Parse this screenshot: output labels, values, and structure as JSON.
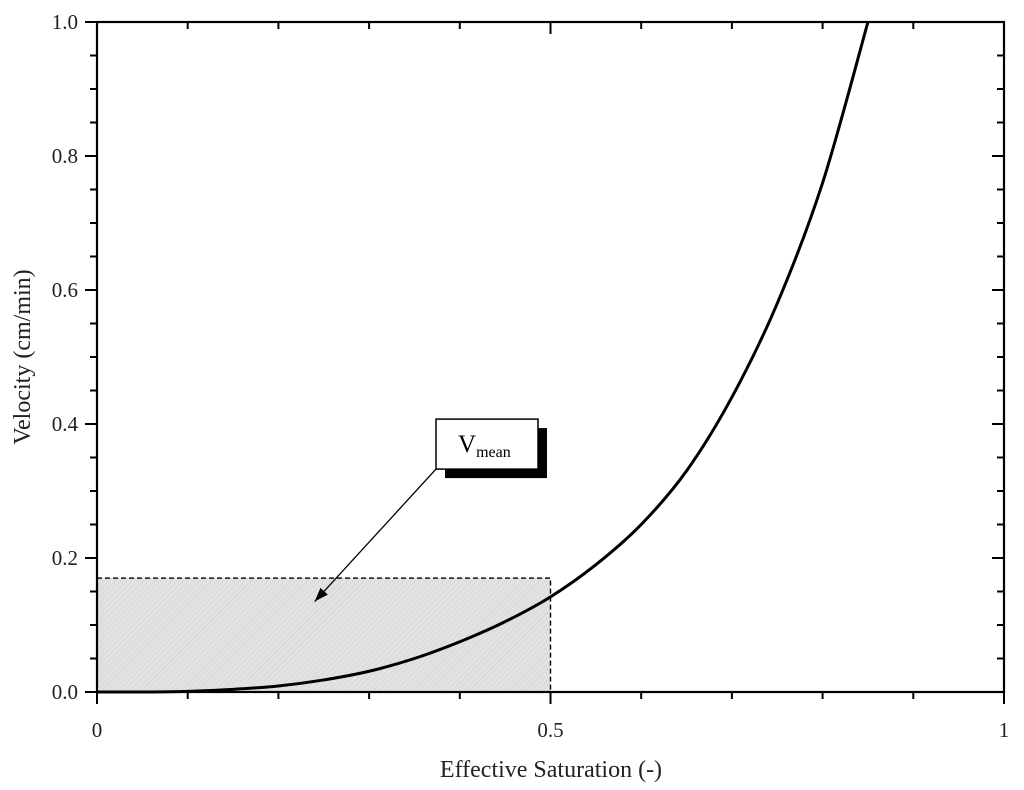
{
  "chart_data": {
    "type": "line",
    "xlabel": "Effective Saturation (-)",
    "ylabel": "Velocity (cm/min)",
    "xlim": [
      0,
      1
    ],
    "ylim": [
      0,
      1
    ],
    "x_tick_labels": [
      {
        "value": 0,
        "label": "0"
      },
      {
        "value": 0.5,
        "label": "0.5"
      },
      {
        "value": 1,
        "label": "1"
      }
    ],
    "y_tick_labels": [
      {
        "value": 0,
        "label": "0.0"
      },
      {
        "value": 0.2,
        "label": "0.2"
      },
      {
        "value": 0.4,
        "label": "0.4"
      },
      {
        "value": 0.6,
        "label": "0.6"
      },
      {
        "value": 0.8,
        "label": "0.8"
      },
      {
        "value": 1,
        "label": "1.0"
      }
    ],
    "x_minor_tick_step": 0.1,
    "y_minor_tick_step": 0.05,
    "grid": false,
    "series": [
      {
        "color": "#000000",
        "x": [
          0,
          0.05,
          0.1,
          0.15,
          0.2,
          0.25,
          0.3,
          0.35,
          0.4,
          0.45,
          0.5,
          0.55,
          0.6,
          0.65,
          0.7,
          0.75,
          0.8,
          0.85
        ],
        "y": [
          0,
          0.0,
          0.001,
          0.004,
          0.009,
          0.018,
          0.031,
          0.05,
          0.075,
          0.105,
          0.142,
          0.19,
          0.25,
          0.33,
          0.44,
          0.58,
          0.76,
          1.0
        ]
      }
    ],
    "shaded_region": {
      "x": [
        0,
        0.5
      ],
      "y": [
        0,
        0.17
      ],
      "fill": "#e0e0e0",
      "border": "dashed"
    },
    "annotation": {
      "text_main": "V",
      "text_sub": "mean",
      "box_center": [
        0.43,
        0.37
      ],
      "arrow_to": [
        0.24,
        0.135
      ]
    }
  }
}
